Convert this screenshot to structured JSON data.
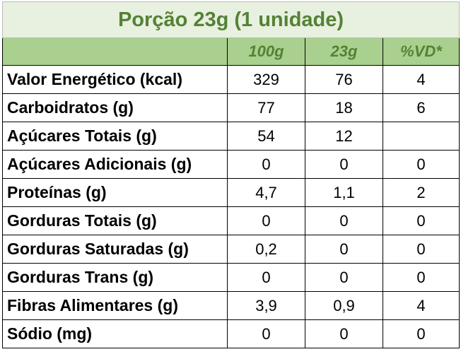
{
  "title": "Porção 23g (1 unidade)",
  "table": {
    "header": [
      "100g",
      "23g",
      "%VD*"
    ],
    "rows": [
      [
        "Valor Energético (kcal)",
        "329",
        "76",
        "4"
      ],
      [
        "Carboidratos (g)",
        "77",
        "18",
        "6"
      ],
      [
        "Açúcares Totais (g)",
        "54",
        "12",
        null
      ],
      [
        "Açúcares Adicionais (g)",
        "0",
        "0",
        "0"
      ],
      [
        "Proteínas (g)",
        "4,7",
        "1,1",
        "2"
      ],
      [
        "Gorduras Totais (g)",
        "0",
        "0",
        "0"
      ],
      [
        "Gorduras Saturadas (g)",
        "0,2",
        "0",
        "0"
      ],
      [
        "Gorduras Trans (g)",
        "0",
        "0",
        "0"
      ],
      [
        "Fibras Alimentares (g)",
        "3,9",
        "0,9",
        "4"
      ],
      [
        "Sódio (mg)",
        "0",
        "0",
        "0"
      ]
    ]
  }
}
